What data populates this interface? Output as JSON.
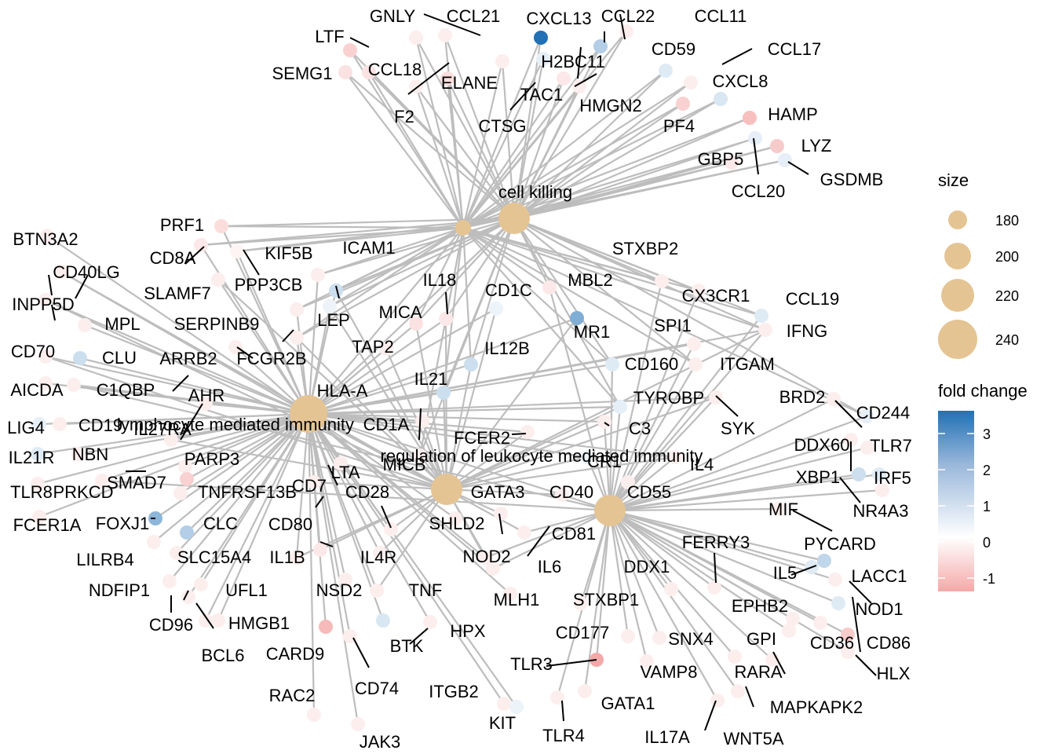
{
  "categories": [
    {
      "id": "ck",
      "label": "cell killing",
      "size": 240
    },
    {
      "id": "lmi",
      "label": "lymphocyte mediated immunity",
      "size": 220
    },
    {
      "id": "rlmi",
      "label": "regulation of leukocyte mediated immunity",
      "size": 200
    },
    {
      "id": "alt",
      "label": "",
      "size": 180
    }
  ],
  "genes": [
    {
      "name": "GNLY",
      "fc": -0.3,
      "links": [
        "ck"
      ]
    },
    {
      "name": "CCL21",
      "fc": -0.3,
      "links": [
        "ck"
      ]
    },
    {
      "name": "CXCL13",
      "fc": 3.5,
      "links": [
        "ck"
      ]
    },
    {
      "name": "CCL22",
      "fc": 1.2,
      "links": [
        "ck"
      ]
    },
    {
      "name": "CCL11",
      "fc": -0.3,
      "links": [
        "ck"
      ]
    },
    {
      "name": "LTF",
      "fc": -0.8,
      "links": [
        "ck"
      ]
    },
    {
      "name": "SEMG1",
      "fc": -0.5,
      "links": [
        "ck"
      ]
    },
    {
      "name": "CCL18",
      "fc": -0.5,
      "links": [
        "ck"
      ]
    },
    {
      "name": "H2BC11",
      "fc": 0.4,
      "links": [
        "ck"
      ]
    },
    {
      "name": "CD59",
      "fc": 0.5,
      "links": [
        "ck"
      ]
    },
    {
      "name": "CCL17",
      "fc": -0.3,
      "links": [
        "ck"
      ]
    },
    {
      "name": "ELANE",
      "fc": -0.6,
      "links": [
        "ck"
      ]
    },
    {
      "name": "TAC1",
      "fc": -0.4,
      "links": [
        "ck"
      ]
    },
    {
      "name": "F2",
      "fc": -0.3,
      "links": [
        "ck"
      ]
    },
    {
      "name": "HMGN2",
      "fc": -0.3,
      "links": [
        "ck"
      ]
    },
    {
      "name": "CXCL8",
      "fc": 0.6,
      "links": [
        "ck"
      ]
    },
    {
      "name": "CTSG",
      "fc": -0.3,
      "links": [
        "ck"
      ]
    },
    {
      "name": "PF4",
      "fc": -0.8,
      "links": [
        "ck"
      ]
    },
    {
      "name": "HAMP",
      "fc": -1.1,
      "links": [
        "ck"
      ]
    },
    {
      "name": "LYZ",
      "fc": -0.9,
      "links": [
        "ck"
      ]
    },
    {
      "name": "GBP5",
      "fc": 0.4,
      "links": [
        "ck"
      ]
    },
    {
      "name": "GSDMB",
      "fc": 0.4,
      "links": [
        "ck"
      ]
    },
    {
      "name": "CCL20",
      "fc": -0.4,
      "links": [
        "ck"
      ]
    },
    {
      "name": "PRF1",
      "fc": -0.6,
      "links": [
        "ck",
        "lmi"
      ]
    },
    {
      "name": "BTN3A2",
      "fc": -0.3,
      "links": [
        "lmi"
      ]
    },
    {
      "name": "CD8A",
      "fc": -0.4,
      "links": [
        "ck",
        "lmi"
      ]
    },
    {
      "name": "CD40LG",
      "fc": -0.3,
      "links": [
        "lmi",
        "rlmi"
      ]
    },
    {
      "name": "KIF5B",
      "fc": -0.2,
      "links": [
        "ck",
        "lmi"
      ]
    },
    {
      "name": "ICAM1",
      "fc": 0.8,
      "links": [
        "ck",
        "lmi",
        "rlmi"
      ]
    },
    {
      "name": "SLAMF7",
      "fc": -0.3,
      "links": [
        "lmi",
        "rlmi"
      ]
    },
    {
      "name": "PPP3CB",
      "fc": -0.3,
      "links": [
        "ck",
        "lmi"
      ]
    },
    {
      "name": "INPP5D",
      "fc": -0.3,
      "links": [
        "lmi",
        "rlmi"
      ]
    },
    {
      "name": "MPL",
      "fc": -0.3,
      "links": [
        "lmi"
      ]
    },
    {
      "name": "SERPINB9",
      "fc": -0.3,
      "links": [
        "ck",
        "lmi"
      ]
    },
    {
      "name": "LEP",
      "fc": 0.3,
      "links": [
        "ck",
        "lmi",
        "rlmi"
      ]
    },
    {
      "name": "STXBP2",
      "fc": -0.3,
      "links": [
        "ck",
        "alt"
      ]
    },
    {
      "name": "IL18",
      "fc": -0.4,
      "links": [
        "ck",
        "lmi",
        "rlmi"
      ]
    },
    {
      "name": "CD1C",
      "fc": 0.3,
      "links": [
        "lmi",
        "rlmi"
      ]
    },
    {
      "name": "MBL2",
      "fc": -0.4,
      "links": [
        "ck",
        "alt"
      ]
    },
    {
      "name": "CX3CR1",
      "fc": -0.3,
      "links": [
        "ck",
        "alt"
      ]
    },
    {
      "name": "CCL19",
      "fc": 0.5,
      "links": [
        "ck",
        "alt"
      ]
    },
    {
      "name": "MICA",
      "fc": -0.5,
      "links": [
        "ck",
        "lmi",
        "rlmi"
      ]
    },
    {
      "name": "CD70",
      "fc": -0.3,
      "links": [
        "lmi",
        "rlmi"
      ]
    },
    {
      "name": "CLU",
      "fc": 0.8,
      "links": [
        "lmi"
      ]
    },
    {
      "name": "ARRB2",
      "fc": -0.3,
      "links": [
        "lmi"
      ]
    },
    {
      "name": "FCGR2B",
      "fc": -0.3,
      "links": [
        "ck",
        "lmi",
        "rlmi"
      ]
    },
    {
      "name": "TAP2",
      "fc": -0.3,
      "links": [
        "lmi",
        "rlmi"
      ]
    },
    {
      "name": "IL12B",
      "fc": 0.8,
      "links": [
        "ck",
        "lmi",
        "rlmi"
      ]
    },
    {
      "name": "MR1",
      "fc": 2.0,
      "links": [
        "lmi",
        "rlmi"
      ]
    },
    {
      "name": "SPI1",
      "fc": -0.3,
      "links": [
        "lmi",
        "alt"
      ]
    },
    {
      "name": "IFNG",
      "fc": -0.3,
      "links": [
        "ck",
        "lmi",
        "rlmi",
        "alt"
      ]
    },
    {
      "name": "CD160",
      "fc": 0.5,
      "links": [
        "ck",
        "lmi",
        "alt"
      ]
    },
    {
      "name": "ITGAM",
      "fc": -0.3,
      "links": [
        "ck",
        "alt"
      ]
    },
    {
      "name": "AICDA",
      "fc": -0.3,
      "links": [
        "lmi"
      ]
    },
    {
      "name": "C1QBP",
      "fc": -0.3,
      "links": [
        "lmi",
        "alt"
      ]
    },
    {
      "name": "AHR",
      "fc": -0.3,
      "links": [
        "lmi"
      ]
    },
    {
      "name": "HLA-A",
      "fc": 0.5,
      "links": [
        "ck",
        "lmi",
        "rlmi"
      ]
    },
    {
      "name": "IL21",
      "fc": 0.8,
      "links": [
        "ck",
        "lmi",
        "rlmi"
      ]
    },
    {
      "name": "TYROBP",
      "fc": 0.4,
      "links": [
        "ck",
        "lmi",
        "rlmi",
        "alt"
      ]
    },
    {
      "name": "BRD2",
      "fc": -0.3,
      "links": [
        "alt"
      ]
    },
    {
      "name": "CD244",
      "fc": 0.4,
      "links": [
        "ck",
        "alt"
      ]
    },
    {
      "name": "LIG4",
      "fc": 0.4,
      "links": [
        "lmi"
      ]
    },
    {
      "name": "CD19",
      "fc": -0.3,
      "links": [
        "lmi"
      ]
    },
    {
      "name": "IL27RA",
      "fc": -0.3,
      "links": [
        "lmi",
        "rlmi"
      ]
    },
    {
      "name": "CD1A",
      "fc": -0.3,
      "links": [
        "lmi",
        "rlmi"
      ]
    },
    {
      "name": "SYK",
      "fc": -0.3,
      "links": [
        "lmi",
        "rlmi",
        "alt"
      ]
    },
    {
      "name": "C3",
      "fc": -0.3,
      "links": [
        "lmi",
        "rlmi",
        "alt"
      ]
    },
    {
      "name": "IL21R",
      "fc": 0.5,
      "links": [
        "lmi"
      ]
    },
    {
      "name": "NBN",
      "fc": -0.3,
      "links": [
        "lmi"
      ]
    },
    {
      "name": "PARP3",
      "fc": -0.3,
      "links": [
        "lmi"
      ]
    },
    {
      "name": "FCER2",
      "fc": -0.3,
      "links": [
        "lmi",
        "rlmi"
      ]
    },
    {
      "name": "MICB",
      "fc": -0.3,
      "links": [
        "ck",
        "lmi",
        "rlmi"
      ]
    },
    {
      "name": "CR1",
      "fc": 0.3,
      "links": [
        "lmi",
        "rlmi",
        "alt"
      ]
    },
    {
      "name": "IL4",
      "fc": -0.3,
      "links": [
        "lmi",
        "rlmi",
        "alt"
      ]
    },
    {
      "name": "DDX60",
      "fc": -0.3,
      "links": [
        "alt"
      ]
    },
    {
      "name": "TLR7",
      "fc": -0.3,
      "links": [
        "alt"
      ]
    },
    {
      "name": "TLR8",
      "fc": -0.3,
      "links": [
        "lmi"
      ]
    },
    {
      "name": "PRKCD",
      "fc": -0.3,
      "links": [
        "lmi",
        "alt"
      ]
    },
    {
      "name": "SMAD7",
      "fc": -0.8,
      "links": [
        "lmi"
      ]
    },
    {
      "name": "TNFRSF13B",
      "fc": -0.3,
      "links": [
        "lmi"
      ]
    },
    {
      "name": "LTA",
      "fc": -0.3,
      "links": [
        "lmi",
        "rlmi"
      ]
    },
    {
      "name": "XBP1",
      "fc": 0.8,
      "links": [
        "alt"
      ]
    },
    {
      "name": "IRF5",
      "fc": 0.5,
      "links": [
        "alt"
      ]
    },
    {
      "name": "CD7",
      "fc": -0.3,
      "links": [
        "lmi",
        "rlmi"
      ]
    },
    {
      "name": "CD28",
      "fc": -0.3,
      "links": [
        "lmi",
        "rlmi"
      ]
    },
    {
      "name": "GATA3",
      "fc": -0.3,
      "links": [
        "rlmi"
      ]
    },
    {
      "name": "CD40",
      "fc": -0.3,
      "links": [
        "lmi",
        "rlmi",
        "alt"
      ]
    },
    {
      "name": "CD55",
      "fc": -0.3,
      "links": [
        "alt"
      ]
    },
    {
      "name": "NR4A3",
      "fc": -0.3,
      "links": [
        "alt"
      ]
    },
    {
      "name": "FCER1A",
      "fc": -0.3,
      "links": [
        "lmi"
      ]
    },
    {
      "name": "FOXJ1",
      "fc": 1.8,
      "links": [
        "lmi"
      ]
    },
    {
      "name": "CLC",
      "fc": 1.2,
      "links": [
        "lmi"
      ]
    },
    {
      "name": "CD80",
      "fc": -0.4,
      "links": [
        "lmi",
        "rlmi"
      ]
    },
    {
      "name": "SHLD2",
      "fc": -0.3,
      "links": [
        "lmi"
      ]
    },
    {
      "name": "MIF",
      "fc": -0.3,
      "links": [
        "alt"
      ]
    },
    {
      "name": "PYCARD",
      "fc": 1.0,
      "links": [
        "alt"
      ]
    },
    {
      "name": "LILRB4",
      "fc": -0.3,
      "links": [
        "lmi"
      ]
    },
    {
      "name": "SLC15A4",
      "fc": -0.3,
      "links": [
        "lmi"
      ]
    },
    {
      "name": "IL1B",
      "fc": -0.3,
      "links": [
        "lmi",
        "rlmi"
      ]
    },
    {
      "name": "IL4R",
      "fc": -0.3,
      "links": [
        "lmi",
        "rlmi"
      ]
    },
    {
      "name": "NOD2",
      "fc": -0.3,
      "links": [
        "lmi",
        "rlmi",
        "alt"
      ]
    },
    {
      "name": "CD81",
      "fc": -0.3,
      "links": [
        "lmi",
        "alt"
      ]
    },
    {
      "name": "FERRY3",
      "fc": -0.3,
      "links": [
        "alt"
      ]
    },
    {
      "name": "IL5",
      "fc": 0.5,
      "links": [
        "alt"
      ]
    },
    {
      "name": "LACC1",
      "fc": -0.3,
      "links": [
        "alt"
      ]
    },
    {
      "name": "NDFIP1",
      "fc": -0.3,
      "links": [
        "lmi"
      ]
    },
    {
      "name": "UFL1",
      "fc": -0.3,
      "links": [
        "lmi"
      ]
    },
    {
      "name": "NSD2",
      "fc": -0.3,
      "links": [
        "lmi"
      ]
    },
    {
      "name": "TNF",
      "fc": -0.3,
      "links": [
        "lmi",
        "rlmi"
      ]
    },
    {
      "name": "IL6",
      "fc": -0.3,
      "links": [
        "lmi",
        "rlmi",
        "alt"
      ]
    },
    {
      "name": "DDX1",
      "fc": -0.3,
      "links": [
        "alt"
      ]
    },
    {
      "name": "EPHB2",
      "fc": -0.3,
      "links": [
        "alt"
      ]
    },
    {
      "name": "NOD1",
      "fc": 0.5,
      "links": [
        "alt"
      ]
    },
    {
      "name": "CD96",
      "fc": -0.3,
      "links": [
        "lmi"
      ]
    },
    {
      "name": "HMGB1",
      "fc": -0.3,
      "links": [
        "lmi"
      ]
    },
    {
      "name": "MLH1",
      "fc": -0.3,
      "links": [
        "lmi"
      ]
    },
    {
      "name": "STXBP1",
      "fc": -0.3,
      "links": [
        "alt"
      ]
    },
    {
      "name": "GPI",
      "fc": -0.3,
      "links": [
        "alt"
      ]
    },
    {
      "name": "CD36",
      "fc": -0.3,
      "links": [
        "alt"
      ]
    },
    {
      "name": "CD86",
      "fc": -0.9,
      "links": [
        "alt"
      ]
    },
    {
      "name": "BCL6",
      "fc": -0.3,
      "links": [
        "lmi"
      ]
    },
    {
      "name": "CARD9",
      "fc": -1.2,
      "links": [
        "lmi"
      ]
    },
    {
      "name": "BTK",
      "fc": 0.6,
      "links": [
        "lmi"
      ]
    },
    {
      "name": "HPX",
      "fc": -0.3,
      "links": [
        "lmi"
      ]
    },
    {
      "name": "CD177",
      "fc": -0.3,
      "links": [
        "alt"
      ]
    },
    {
      "name": "SNX4",
      "fc": -0.3,
      "links": [
        "alt"
      ]
    },
    {
      "name": "TLR3",
      "fc": -1.5,
      "links": [
        "alt"
      ]
    },
    {
      "name": "VAMP8",
      "fc": -0.3,
      "links": [
        "alt"
      ]
    },
    {
      "name": "RARA",
      "fc": -0.3,
      "links": [
        "alt"
      ]
    },
    {
      "name": "HLX",
      "fc": -0.3,
      "links": [
        "alt"
      ]
    },
    {
      "name": "RAC2",
      "fc": -0.3,
      "links": [
        "lmi"
      ]
    },
    {
      "name": "CD74",
      "fc": -0.3,
      "links": [
        "lmi"
      ]
    },
    {
      "name": "ITGB2",
      "fc": -0.3,
      "links": [
        "lmi"
      ]
    },
    {
      "name": "GATA1",
      "fc": -0.3,
      "links": [
        "alt"
      ]
    },
    {
      "name": "MAPKAPK2",
      "fc": -0.3,
      "links": [
        "alt"
      ]
    },
    {
      "name": "KIT",
      "fc": 0.3,
      "links": [
        "lmi"
      ]
    },
    {
      "name": "TLR4",
      "fc": -0.3,
      "links": [
        "alt"
      ]
    },
    {
      "name": "IL17A",
      "fc": -0.3,
      "links": [
        "alt"
      ]
    },
    {
      "name": "WNT5A",
      "fc": -0.3,
      "links": [
        "alt"
      ]
    },
    {
      "name": "JAK3",
      "fc": -0.3,
      "links": [
        "lmi"
      ]
    }
  ],
  "legend": {
    "size_title": "size",
    "size_values": [
      "180",
      "200",
      "220",
      "240"
    ],
    "color_title": "fold change",
    "color_ticks": [
      "3",
      "2",
      "1",
      "0",
      "-1"
    ],
    "color_min": -1.5,
    "color_max": 3.5,
    "low_color": "#f4a9a8",
    "mid_color": "#ffffff",
    "high_color": "#2171b5",
    "node_color": "#e5c494",
    "edge_color": "#bdbdbd"
  }
}
